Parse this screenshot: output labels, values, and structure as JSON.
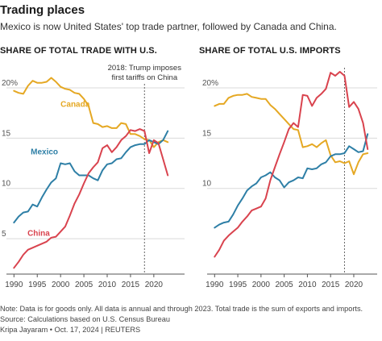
{
  "header": {
    "title": "Trading places",
    "subtitle": "Mexico is now United States' top trade partner, followed by Canada and China."
  },
  "colors": {
    "canada": "#e5a823",
    "mexico": "#2e7fa6",
    "china": "#d9434e",
    "grid": "#d9d9d9",
    "axis": "#555555",
    "annotation_line": "#666666"
  },
  "annotation": {
    "line1": "2018: Trump imposes",
    "line2": "first tariffs on China",
    "year": 2018
  },
  "notes": {
    "note": "Note: Data is for goods only. All data is annual and through 2023. Total trade is the sum of exports and imports.",
    "source": "Source: Calculations based on U.S. Census Bureau",
    "credit": "Kripa Jayaram • Oct. 17, 2024 | REUTERS"
  },
  "chart_data": [
    {
      "type": "line",
      "title": "SHARE OF TOTAL TRADE WITH U.S.",
      "x_ticks": [
        1990,
        1995,
        2000,
        2005,
        2010,
        2015,
        2020
      ],
      "y_ticks": [
        {
          "value": 5,
          "label": "5"
        },
        {
          "value": 10,
          "label": "10"
        },
        {
          "value": 15,
          "label": "15"
        },
        {
          "value": 20,
          "label": "20%"
        }
      ],
      "xlim": [
        1989.6,
        2024
      ],
      "ylim": [
        1.8,
        22
      ],
      "grid": true,
      "x": [
        1990,
        1991,
        1992,
        1993,
        1994,
        1995,
        1996,
        1997,
        1998,
        1999,
        2000,
        2001,
        2002,
        2003,
        2004,
        2005,
        2006,
        2007,
        2008,
        2009,
        2010,
        2011,
        2012,
        2013,
        2014,
        2015,
        2016,
        2017,
        2018,
        2019,
        2020,
        2021,
        2022,
        2023
      ],
      "series": [
        {
          "name": "Canada",
          "key": "canada",
          "label_pos": {
            "x": 2000,
            "y": 18.1
          },
          "values": [
            19.7,
            19.5,
            19.4,
            20.2,
            20.7,
            20.5,
            20.5,
            20.6,
            21.0,
            20.6,
            20.1,
            19.9,
            19.8,
            19.5,
            19.4,
            18.9,
            18.2,
            16.5,
            16.4,
            16.1,
            16.2,
            16.0,
            16.0,
            16.5,
            16.4,
            15.4,
            15.4,
            15.2,
            14.9,
            14.8,
            14.1,
            14.6,
            14.8,
            14.6
          ]
        },
        {
          "name": "Mexico",
          "key": "mexico",
          "label_pos": {
            "x": 1993.6,
            "y": 13.4
          },
          "values": [
            6.6,
            7.2,
            7.6,
            7.7,
            8.4,
            8.2,
            9.1,
            9.9,
            10.6,
            11.0,
            12.5,
            12.4,
            12.5,
            11.7,
            11.3,
            11.3,
            11.3,
            11.0,
            10.8,
            11.8,
            12.4,
            12.5,
            12.9,
            13.0,
            13.6,
            14.1,
            14.3,
            14.4,
            14.4,
            14.8,
            14.6,
            14.4,
            14.8,
            15.7
          ]
        },
        {
          "name": "China",
          "key": "china",
          "label_pos": {
            "x": 1992.9,
            "y": 5.3
          },
          "values": [
            2.1,
            2.7,
            3.4,
            3.9,
            4.1,
            4.3,
            4.5,
            4.7,
            5.1,
            5.2,
            5.7,
            6.2,
            7.3,
            8.5,
            9.4,
            10.5,
            11.5,
            12.1,
            12.6,
            14.0,
            14.3,
            13.6,
            14.1,
            14.8,
            15.2,
            15.8,
            15.7,
            15.9,
            15.7,
            13.5,
            14.8,
            14.5,
            12.9,
            11.3
          ]
        }
      ]
    },
    {
      "type": "line",
      "title": "SHARE OF TOTAL U.S. IMPORTS",
      "x_ticks": [
        1990,
        1995,
        2000,
        2005,
        2010,
        2015,
        2020
      ],
      "y_ticks": [
        {
          "value": 10,
          "label": "10"
        },
        {
          "value": 15,
          "label": "15"
        },
        {
          "value": 20,
          "label": "20%"
        }
      ],
      "xlim": [
        1989.6,
        2024
      ],
      "ylim": [
        1.8,
        22
      ],
      "grid": true,
      "x": [
        1990,
        1991,
        1992,
        1993,
        1994,
        1995,
        1996,
        1997,
        1998,
        1999,
        2000,
        2001,
        2002,
        2003,
        2004,
        2005,
        2006,
        2007,
        2008,
        2009,
        2010,
        2011,
        2012,
        2013,
        2014,
        2015,
        2016,
        2017,
        2018,
        2019,
        2020,
        2021,
        2022,
        2023
      ],
      "series": [
        {
          "name": "",
          "key": "canada",
          "values": [
            18.2,
            18.4,
            18.4,
            19.0,
            19.2,
            19.3,
            19.3,
            19.4,
            19.1,
            19.0,
            18.9,
            18.9,
            18.3,
            17.9,
            17.4,
            16.9,
            16.4,
            15.9,
            15.8,
            14.1,
            14.2,
            14.4,
            14.1,
            14.5,
            14.8,
            13.3,
            12.6,
            12.7,
            12.5,
            12.7,
            11.4,
            12.6,
            13.4,
            13.5
          ]
        },
        {
          "name": "",
          "key": "mexico",
          "values": [
            6.1,
            6.4,
            6.6,
            6.7,
            7.4,
            8.3,
            9.0,
            9.8,
            10.2,
            10.5,
            11.1,
            11.3,
            11.6,
            11.1,
            10.8,
            10.1,
            10.6,
            10.8,
            11.1,
            11.0,
            12.0,
            11.9,
            12.0,
            12.4,
            12.6,
            13.2,
            13.4,
            13.4,
            13.5,
            14.2,
            13.9,
            13.6,
            13.7,
            15.4
          ]
        },
        {
          "name": "",
          "key": "china",
          "values": [
            3.2,
            3.9,
            4.8,
            5.3,
            5.7,
            6.1,
            6.7,
            7.2,
            7.8,
            8.0,
            8.2,
            9.0,
            10.8,
            12.1,
            13.4,
            14.6,
            15.9,
            16.5,
            16.1,
            19.3,
            19.2,
            18.2,
            19.0,
            19.4,
            19.9,
            21.5,
            21.2,
            21.6,
            21.2,
            18.1,
            18.6,
            17.9,
            16.5,
            13.9
          ]
        }
      ]
    }
  ]
}
